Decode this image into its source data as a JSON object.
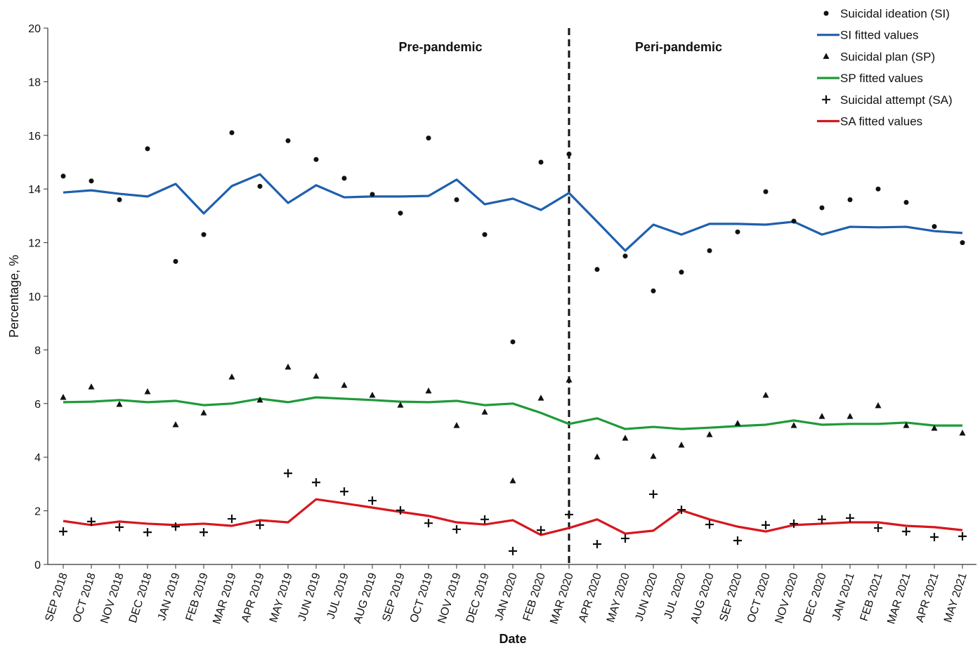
{
  "chart_data": {
    "type": "line",
    "x_label": "Date",
    "y_label": "Percentage, %",
    "categories": [
      "SEP 2018",
      "OCT 2018",
      "NOV 2018",
      "DEC 2018",
      "JAN 2019",
      "FEB 2019",
      "MAR 2019",
      "APR 2019",
      "MAY 2019",
      "JUN 2019",
      "JUL 2019",
      "AUG 2019",
      "SEP 2019",
      "OCT 2019",
      "NOV 2019",
      "DEC 2019",
      "JAN 2020",
      "FEB 2020",
      "MAR 2020",
      "APR 2020",
      "MAY 2020",
      "JUN 2020",
      "JUL 2020",
      "AUG 2020",
      "SEP 2020",
      "OCT 2020",
      "NOV 2020",
      "DEC 2020",
      "JAN 2021",
      "FEB 2021",
      "MAR 2021",
      "APR 2021",
      "MAY 2021"
    ],
    "ylim": [
      0,
      20
    ],
    "yticks": [
      0,
      2,
      4,
      6,
      8,
      10,
      12,
      14,
      16,
      18,
      20
    ],
    "divider_index": 18,
    "annotations": [
      "Pre-pandemic",
      "Peri-pandemic"
    ],
    "series": [
      {
        "name": "Suicidal ideation (SI)",
        "style": "circle",
        "color": "#111111",
        "values": [
          14.48,
          14.3,
          13.6,
          15.5,
          11.3,
          12.3,
          16.1,
          14.1,
          15.8,
          15.1,
          14.4,
          13.8,
          13.1,
          15.9,
          13.6,
          12.3,
          8.3,
          15.0,
          15.3,
          11.0,
          11.5,
          10.2,
          10.9,
          11.7,
          12.4,
          13.9,
          12.8,
          13.3,
          13.6,
          14.0,
          13.5,
          12.6,
          12.0
        ]
      },
      {
        "name": "SI fitted values",
        "style": "line",
        "color": "#1f5fad",
        "values": [
          13.87,
          13.95,
          13.82,
          13.72,
          14.19,
          13.09,
          14.11,
          14.55,
          13.48,
          14.14,
          13.69,
          13.72,
          13.72,
          13.74,
          14.35,
          13.43,
          13.64,
          13.22,
          13.85,
          12.78,
          11.7,
          12.67,
          12.3,
          12.7,
          12.7,
          12.67,
          12.78,
          12.3,
          12.59,
          12.57,
          12.59,
          12.43,
          12.36
        ]
      },
      {
        "name": "Suicidal plan (SP)",
        "style": "triangle",
        "color": "#111111",
        "values": [
          6.23,
          6.62,
          5.97,
          6.44,
          5.21,
          5.65,
          6.99,
          6.13,
          7.36,
          7.02,
          6.68,
          6.31,
          5.94,
          6.47,
          5.18,
          5.68,
          3.12,
          6.2,
          6.88,
          4.01,
          4.71,
          4.03,
          4.45,
          4.84,
          5.26,
          6.31,
          5.18,
          5.52,
          5.52,
          5.92,
          5.18,
          5.08,
          4.9
        ]
      },
      {
        "name": "SP fitted values",
        "style": "line",
        "color": "#1f9a3a",
        "values": [
          6.05,
          6.07,
          6.13,
          6.05,
          6.1,
          5.94,
          6.0,
          6.18,
          6.05,
          6.23,
          6.18,
          6.13,
          6.07,
          6.05,
          6.1,
          5.94,
          6.0,
          5.65,
          5.24,
          5.45,
          5.05,
          5.13,
          5.05,
          5.1,
          5.16,
          5.21,
          5.37,
          5.21,
          5.24,
          5.24,
          5.29,
          5.18,
          5.18
        ]
      },
      {
        "name": "Suicidal attempt (SA)",
        "style": "plus",
        "color": "#111111",
        "values": [
          1.23,
          1.6,
          1.39,
          1.2,
          1.41,
          1.2,
          1.7,
          1.47,
          3.4,
          3.06,
          2.72,
          2.38,
          2.02,
          1.54,
          1.31,
          1.68,
          0.5,
          1.28,
          1.86,
          0.76,
          0.97,
          2.62,
          2.04,
          1.49,
          0.89,
          1.47,
          1.52,
          1.68,
          1.73,
          1.36,
          1.23,
          1.02,
          1.05
        ]
      },
      {
        "name": "SA fitted values",
        "style": "line",
        "color": "#d7161e",
        "values": [
          1.62,
          1.47,
          1.6,
          1.52,
          1.47,
          1.52,
          1.44,
          1.65,
          1.57,
          2.43,
          2.28,
          2.12,
          1.96,
          1.81,
          1.57,
          1.49,
          1.65,
          1.1,
          1.36,
          1.68,
          1.15,
          1.26,
          2.02,
          1.68,
          1.41,
          1.23,
          1.47,
          1.52,
          1.57,
          1.57,
          1.44,
          1.39,
          1.28
        ]
      }
    ]
  }
}
